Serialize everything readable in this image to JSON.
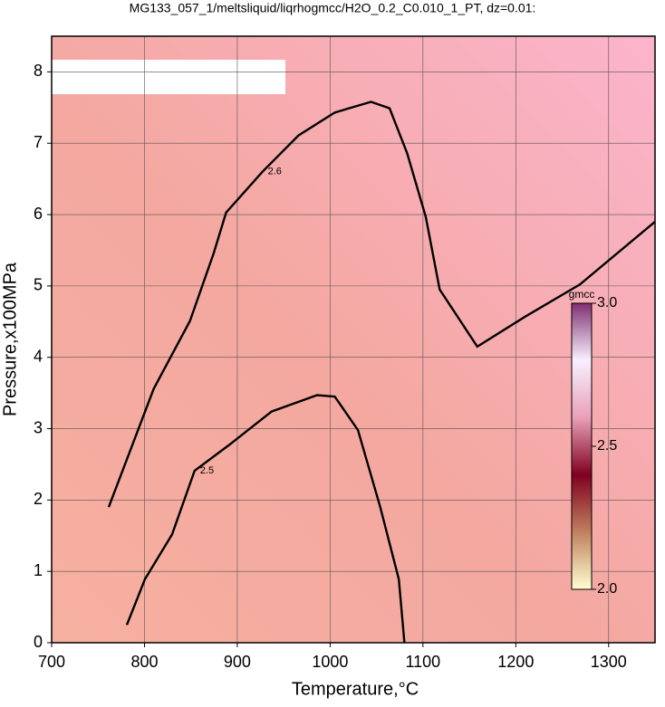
{
  "chart_data": {
    "type": "contour",
    "title": "MG133_057_1/meltsliquid/liqrhogmcc/H2O_0.2_C0.010_1_PT, dz=0.01:",
    "x_label": "Temperature,°C",
    "y_label": "Pressure,x100MPa",
    "xlim": [
      700,
      1350
    ],
    "ylim": [
      0,
      8.5
    ],
    "xticks": [
      700,
      800,
      900,
      1000,
      1100,
      1200,
      1300
    ],
    "yticks": [
      0,
      1,
      2,
      3,
      4,
      5,
      6,
      7,
      8
    ],
    "grid": true,
    "series": [
      {
        "name": "2.5",
        "color": "#000000",
        "x": [
          781,
          800.5,
          829.8,
          854,
          893,
          937,
          986,
          1005,
          1030,
          1054,
          1074,
          1080
        ],
        "y": [
          0.25,
          0.89,
          1.52,
          2.41,
          2.79,
          3.24,
          3.47,
          3.45,
          2.98,
          1.9,
          0.89,
          0
        ]
      },
      {
        "name": "2.6",
        "color": "#000000",
        "x": [
          761.5,
          810,
          849,
          874.6,
          888,
          927,
          966,
          1005,
          1044,
          1064,
          1083,
          1103,
          1118,
          1158.5,
          1210,
          1269,
          1350
        ],
        "y": [
          1.9,
          3.56,
          4.51,
          5.46,
          6.03,
          6.6,
          7.11,
          7.43,
          7.58,
          7.49,
          6.86,
          5.97,
          4.95,
          4.15,
          4.57,
          5.02,
          5.9
        ]
      }
    ],
    "colorbar": {
      "label": "gmcc",
      "lim": [
        2,
        3
      ],
      "ticks": [
        {
          "value": 2,
          "label": "2.0"
        },
        2.5,
        {
          "value": 3,
          "label": "3.0"
        }
      ],
      "colors": [
        "#ffffd0",
        "#c08060",
        "#800020",
        "#e8a0b8",
        "#f8f0ff",
        "#803070"
      ]
    }
  }
}
